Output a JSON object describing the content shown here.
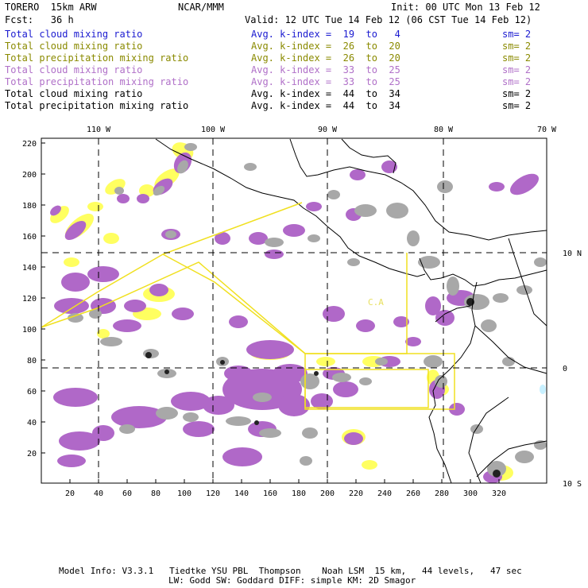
{
  "header": {
    "model": "TORERO  15km ARW",
    "org": "NCAR/MMM",
    "init": "Init: 00 UTC Mon 13 Feb 12",
    "fcst": "Fcst:   36 h",
    "valid": "Valid: 12 UTC Tue 14 Feb 12 (06 CST Tue 14 Feb 12)"
  },
  "legend": [
    {
      "label": "Total cloud mixing ratio",
      "stat": "Avg. k-index =  19  to   4",
      "sm": "sm= 2",
      "color": "#1a1ad0"
    },
    {
      "label": "Total cloud mixing ratio",
      "stat": "Avg. k-index =  26  to  20",
      "sm": "sm= 2",
      "color": "#8a8a00"
    },
    {
      "label": "Total precipitation mixing ratio",
      "stat": "Avg. k-index =  26  to  20",
      "sm": "sm= 2",
      "color": "#8a8a00"
    },
    {
      "label": "Total cloud mixing ratio",
      "stat": "Avg. k-index =  33  to  25",
      "sm": "sm= 2",
      "color": "#b070c8"
    },
    {
      "label": "Total precipitation mixing ratio",
      "stat": "Avg. k-index =  33  to  25",
      "sm": "sm= 2",
      "color": "#b070c8"
    },
    {
      "label": "Total cloud mixing ratio",
      "stat": "Avg. k-index =  44  to  34",
      "sm": "sm= 2",
      "color": "#000000"
    },
    {
      "label": "Total precipitation mixing ratio",
      "stat": "Avg. k-index =  44  to  34",
      "sm": "sm= 2",
      "color": "#000000"
    }
  ],
  "map": {
    "x_ticks": [
      "20",
      "40",
      "60",
      "80",
      "100",
      "120",
      "140",
      "160",
      "180",
      "200",
      "220",
      "240",
      "260",
      "280",
      "300",
      "320"
    ],
    "y_ticks": [
      "20",
      "40",
      "60",
      "80",
      "100",
      "120",
      "140",
      "160",
      "180",
      "200",
      "220"
    ],
    "lon_labels": [
      "110 W",
      "100 W",
      "90 W",
      "80 W",
      "70 W"
    ],
    "lat_labels": [
      "10 N",
      "0",
      "10 S"
    ],
    "region_label": "C.A",
    "colors": {
      "yellow": "#ffff60",
      "violet": "#b068c8",
      "gray": "#a8a8a8",
      "box": "#f0e020",
      "cyan": "#c8f0ff"
    }
  },
  "footer": {
    "line1": "Model Info: V3.3.1   Tiedtke YSU PBL  Thompson    Noah LSM  15 km,   44 levels,   47 sec",
    "line2": "LW: Godd SW: Goddard DIFF: simple KM: 2D Smagor"
  }
}
